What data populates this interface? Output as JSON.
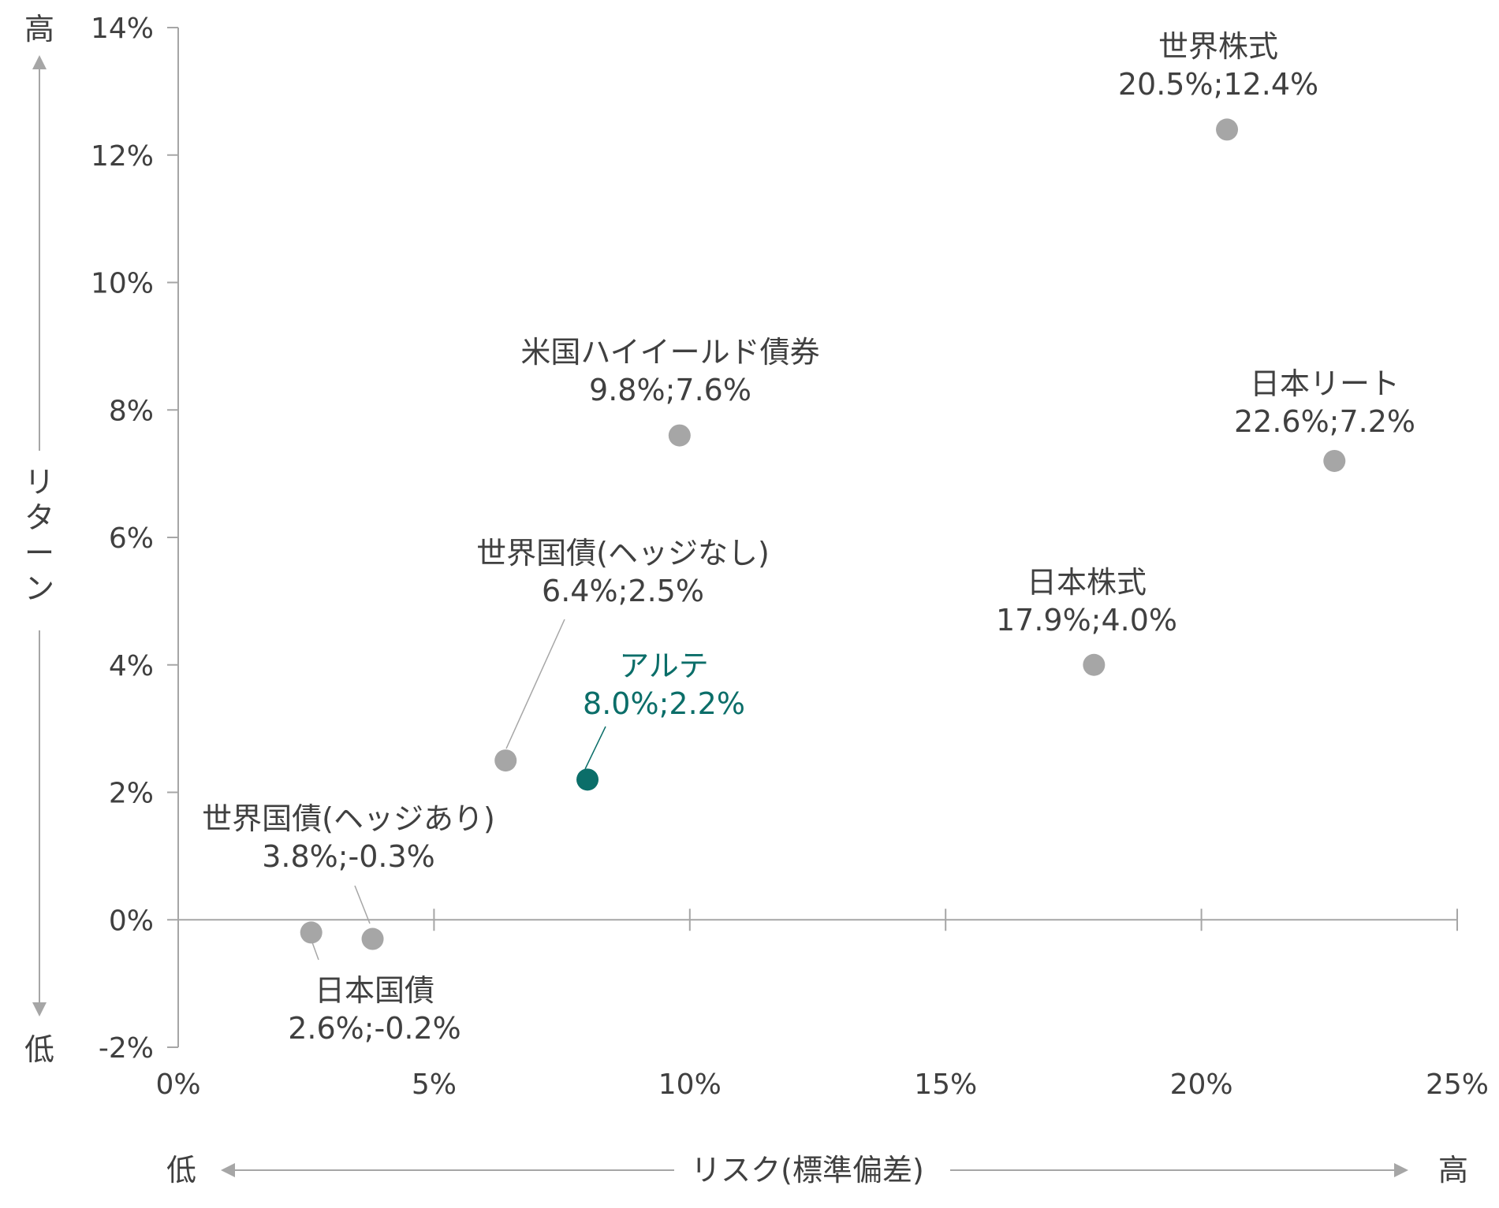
{
  "chart_data": {
    "type": "scatter",
    "title": "",
    "xlabel": "リスク(標準偏差)",
    "ylabel": "リターン",
    "x_low_label": "低",
    "x_high_label": "高",
    "y_low_label": "低",
    "y_high_label": "高",
    "xlim": [
      0,
      25
    ],
    "ylim": [
      -2,
      14
    ],
    "x_ticks": [
      0,
      5,
      10,
      15,
      20,
      25
    ],
    "x_tick_labels": [
      "0%",
      "5%",
      "10%",
      "15%",
      "20%",
      "25%"
    ],
    "y_ticks": [
      -2,
      0,
      2,
      4,
      6,
      8,
      10,
      12,
      14
    ],
    "y_tick_labels": [
      "-2%",
      "0%",
      "2%",
      "4%",
      "6%",
      "8%",
      "10%",
      "12%",
      "14%"
    ],
    "grid": false,
    "colors": {
      "default_point": "#a6a6a6",
      "highlight_point": "#0b6e69",
      "axis": "#a6a6a6",
      "text": "#404040"
    },
    "points": [
      {
        "name": "世界株式",
        "values_label": "20.5%;12.4%",
        "x": 20.5,
        "y": 12.4,
        "highlight": false
      },
      {
        "name": "日本リート",
        "values_label": "22.6%;7.2%",
        "x": 22.6,
        "y": 7.2,
        "highlight": false
      },
      {
        "name": "米国ハイイールド債券",
        "values_label": "9.8%;7.6%",
        "x": 9.8,
        "y": 7.6,
        "highlight": false
      },
      {
        "name": "日本株式",
        "values_label": "17.9%;4.0%",
        "x": 17.9,
        "y": 4.0,
        "highlight": false
      },
      {
        "name": "世界国債(ヘッジなし)",
        "values_label": "6.4%;2.5%",
        "x": 6.4,
        "y": 2.5,
        "highlight": false
      },
      {
        "name": "アルテ",
        "values_label": "8.0%;2.2%",
        "x": 8.0,
        "y": 2.2,
        "highlight": true
      },
      {
        "name": "世界国債(ヘッジあり)",
        "values_label": "3.8%;-0.3%",
        "x": 3.8,
        "y": -0.3,
        "highlight": false
      },
      {
        "name": "日本国債",
        "values_label": "2.6%;-0.2%",
        "x": 2.6,
        "y": -0.2,
        "highlight": false
      }
    ]
  }
}
